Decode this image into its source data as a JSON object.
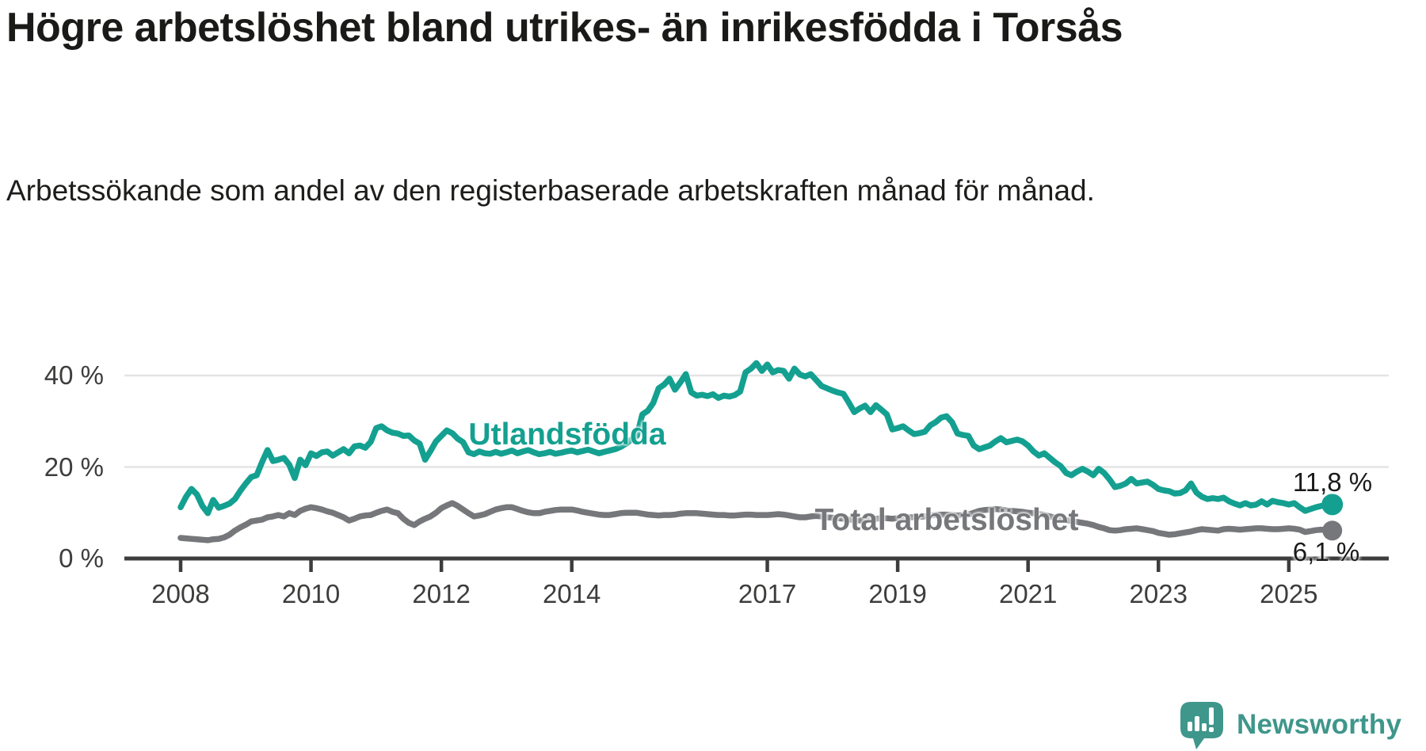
{
  "header": {
    "title": "Högre arbetslöshet bland utrikes- än inrikesfödda i Torsås",
    "subtitle": "Arbetssökande som andel av den registerbaserade arbetskraften månad för månad."
  },
  "footer": {
    "brand": "Newsworthy",
    "brand_color": "#3f968b"
  },
  "chart_data": {
    "type": "line",
    "title": "Högre arbetslöshet bland utrikes- än inrikesfödda i Torsås",
    "subtitle": "Arbetssökande som andel av den registerbaserade arbetskraften månad för månad.",
    "unit": "%",
    "frequency": "monthly",
    "x_start": "2008-01",
    "x_end": "2025-09",
    "x_tick_labels": [
      "2008",
      "2010",
      "2012",
      "2014",
      "2017",
      "2019",
      "2021",
      "2023",
      "2025"
    ],
    "x_tick_years": [
      2008,
      2010,
      2012,
      2014,
      2017,
      2019,
      2021,
      2023,
      2025
    ],
    "y_ticks": [
      {
        "value": 0,
        "label": "0 %"
      },
      {
        "value": 20,
        "label": "20 %"
      },
      {
        "value": 40,
        "label": "40 %"
      }
    ],
    "ylim": [
      0,
      45
    ],
    "grid": "horizontal",
    "legend_position": "inline-labels",
    "series": [
      {
        "name": "Utlandsfödda",
        "color": "#14a090",
        "end_label": "11,8 %",
        "end_value": 11.8,
        "values": [
          11.2,
          13.5,
          15.2,
          14.0,
          11.5,
          9.9,
          12.8,
          11.1,
          11.5,
          12.0,
          13.0,
          14.8,
          16.4,
          17.8,
          18.2,
          21.1,
          23.7,
          21.3,
          21.6,
          22.0,
          20.5,
          17.6,
          21.6,
          20.4,
          23.0,
          22.4,
          23.2,
          23.4,
          22.5,
          23.2,
          23.9,
          23.0,
          24.5,
          24.7,
          24.2,
          25.5,
          28.5,
          28.9,
          28.0,
          27.5,
          27.3,
          26.8,
          26.9,
          25.8,
          25.1,
          21.6,
          23.5,
          25.6,
          26.8,
          28.0,
          27.4,
          26.2,
          25.4,
          23.2,
          22.8,
          23.4,
          23.0,
          22.9,
          23.3,
          22.9,
          23.2,
          23.6,
          23.0,
          23.4,
          23.7,
          23.2,
          22.8,
          23.0,
          23.3,
          22.9,
          23.1,
          23.4,
          23.6,
          23.2,
          23.5,
          23.8,
          23.4,
          23.0,
          23.3,
          23.6,
          23.9,
          24.4,
          25.1,
          26.0,
          26.8,
          31.5,
          32.3,
          34.0,
          37.2,
          38.0,
          39.3,
          36.9,
          38.5,
          40.3,
          36.3,
          35.6,
          35.8,
          35.5,
          35.9,
          35.1,
          35.6,
          35.4,
          35.7,
          36.5,
          40.7,
          41.5,
          42.7,
          41.0,
          42.4,
          40.7,
          41.2,
          41.0,
          39.3,
          41.5,
          40.2,
          39.8,
          40.3,
          39.0,
          37.7,
          37.2,
          36.7,
          36.3,
          36.0,
          34.1,
          32.0,
          32.8,
          33.4,
          32.0,
          33.5,
          32.5,
          31.5,
          28.2,
          28.5,
          28.9,
          28.0,
          27.2,
          27.4,
          27.7,
          29.1,
          29.8,
          30.8,
          31.1,
          29.8,
          27.3,
          27.0,
          26.8,
          24.7,
          23.9,
          24.3,
          24.7,
          25.6,
          26.3,
          25.4,
          25.7,
          26.0,
          25.6,
          24.7,
          23.4,
          22.5,
          23.0,
          22.0,
          21.0,
          20.2,
          18.7,
          18.2,
          19.0,
          19.6,
          19.0,
          18.2,
          19.6,
          18.7,
          17.3,
          15.6,
          15.9,
          16.4,
          17.4,
          16.4,
          16.6,
          16.8,
          16.1,
          15.2,
          14.9,
          14.7,
          14.2,
          14.3,
          14.9,
          16.4,
          14.4,
          13.5,
          13.0,
          13.2,
          13.0,
          13.3,
          12.5,
          12.0,
          11.6,
          12.1,
          11.6,
          11.8,
          12.5,
          11.8,
          12.6,
          12.3,
          12.1,
          11.8,
          12.1,
          11.2,
          10.4,
          10.8,
          11.2,
          11.5,
          11.6,
          11.8
        ]
      },
      {
        "name": "Total arbetslöshet",
        "color": "#76777a",
        "end_label": "6,1 %",
        "end_value": 6.1,
        "values": [
          4.5,
          4.4,
          4.3,
          4.2,
          4.1,
          4.0,
          4.2,
          4.3,
          4.6,
          5.2,
          6.1,
          6.8,
          7.4,
          8.1,
          8.3,
          8.5,
          9.0,
          9.2,
          9.5,
          9.2,
          9.9,
          9.5,
          10.4,
          10.9,
          11.2,
          11.0,
          10.7,
          10.3,
          10.0,
          9.5,
          9.0,
          8.3,
          8.7,
          9.2,
          9.4,
          9.5,
          10.0,
          10.4,
          10.7,
          10.2,
          9.9,
          8.7,
          7.8,
          7.3,
          8.1,
          8.7,
          9.2,
          10.0,
          11.0,
          11.6,
          12.1,
          11.5,
          10.7,
          9.9,
          9.2,
          9.4,
          9.7,
          10.2,
          10.7,
          11.0,
          11.2,
          11.2,
          10.8,
          10.4,
          10.1,
          9.9,
          9.9,
          10.2,
          10.4,
          10.6,
          10.7,
          10.7,
          10.7,
          10.5,
          10.2,
          10.0,
          9.8,
          9.6,
          9.5,
          9.5,
          9.7,
          9.9,
          10.0,
          10.0,
          10.0,
          9.8,
          9.6,
          9.5,
          9.4,
          9.5,
          9.5,
          9.6,
          9.8,
          9.9,
          9.9,
          9.9,
          9.8,
          9.7,
          9.6,
          9.5,
          9.5,
          9.4,
          9.4,
          9.5,
          9.6,
          9.6,
          9.5,
          9.5,
          9.5,
          9.6,
          9.7,
          9.6,
          9.4,
          9.2,
          9.0,
          9.0,
          9.2,
          9.3,
          9.2,
          9.0,
          8.9,
          8.8,
          8.7,
          8.5,
          8.4,
          8.3,
          8.4,
          8.5,
          8.7,
          8.8,
          8.8,
          8.7,
          8.8,
          8.9,
          9.0,
          9.0,
          9.1,
          9.2,
          9.4,
          9.5,
          9.6,
          9.6,
          9.5,
          9.4,
          9.5,
          9.6,
          10.0,
          10.4,
          10.6,
          10.7,
          10.8,
          10.7,
          10.5,
          10.4,
          10.3,
          10.2,
          10.0,
          9.9,
          9.7,
          9.5,
          9.2,
          8.9,
          8.6,
          8.4,
          8.2,
          8.0,
          7.8,
          7.6,
          7.3,
          6.9,
          6.6,
          6.2,
          6.1,
          6.2,
          6.4,
          6.5,
          6.6,
          6.4,
          6.2,
          6.0,
          5.6,
          5.4,
          5.2,
          5.3,
          5.5,
          5.7,
          5.9,
          6.2,
          6.4,
          6.3,
          6.2,
          6.1,
          6.4,
          6.5,
          6.4,
          6.3,
          6.4,
          6.5,
          6.6,
          6.6,
          6.5,
          6.4,
          6.4,
          6.5,
          6.6,
          6.5,
          6.3,
          5.8,
          6.0,
          6.2,
          6.3,
          6.2,
          6.1
        ]
      }
    ]
  }
}
